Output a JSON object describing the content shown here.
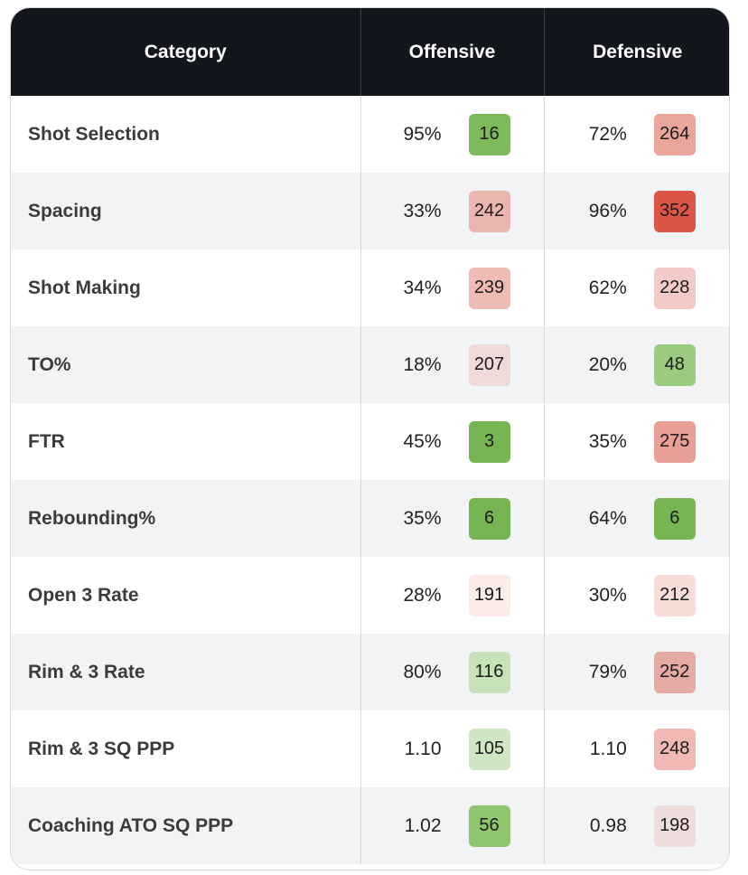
{
  "headers": {
    "category": "Category",
    "offensive": "Offensive",
    "defensive": "Defensive"
  },
  "rows": [
    {
      "category": "Shot Selection",
      "off_value": "95%",
      "off_rank": "16",
      "off_color": "#7dbb5a",
      "def_value": "72%",
      "def_rank": "264",
      "def_color": "#eba69c"
    },
    {
      "category": "Spacing",
      "off_value": "33%",
      "off_rank": "242",
      "off_color": "#ebb5b0",
      "def_value": "96%",
      "def_rank": "352",
      "def_color": "#dc5445"
    },
    {
      "category": "Shot Making",
      "off_value": "34%",
      "off_rank": "239",
      "off_color": "#efbcb5",
      "def_value": "62%",
      "def_rank": "228",
      "def_color": "#f3cbc6"
    },
    {
      "category": "TO%",
      "off_value": "18%",
      "off_rank": "207",
      "off_color": "#efd9d9",
      "def_value": "20%",
      "def_rank": "48",
      "def_color": "#9bcb7e"
    },
    {
      "category": "FTR",
      "off_value": "45%",
      "off_rank": "3",
      "off_color": "#76b552",
      "def_value": "35%",
      "def_rank": "275",
      "def_color": "#ea9f96"
    },
    {
      "category": "Rebounding%",
      "off_value": "35%",
      "off_rank": "6",
      "off_color": "#76b552",
      "def_value": "64%",
      "def_rank": "6",
      "def_color": "#76b552"
    },
    {
      "category": "Open 3 Rate",
      "off_value": "28%",
      "off_rank": "191",
      "off_color": "#fbecea",
      "def_value": "30%",
      "def_rank": "212",
      "def_color": "#f7dcd8"
    },
    {
      "category": "Rim & 3 Rate",
      "off_value": "80%",
      "off_rank": "116",
      "off_color": "#c7e2b8",
      "def_value": "79%",
      "def_rank": "252",
      "def_color": "#e6aaa4"
    },
    {
      "category": "Rim & 3 SQ PPP",
      "off_value": "1.10",
      "off_rank": "105",
      "off_color": "#cfe6c2",
      "def_value": "1.10",
      "def_rank": "248",
      "def_color": "#f0b9b3"
    },
    {
      "category": "Coaching ATO SQ PPP",
      "off_value": "1.02",
      "off_rank": "56",
      "off_color": "#8ec56d",
      "def_value": "0.98",
      "def_rank": "198",
      "def_color": "#efdddd"
    }
  ]
}
